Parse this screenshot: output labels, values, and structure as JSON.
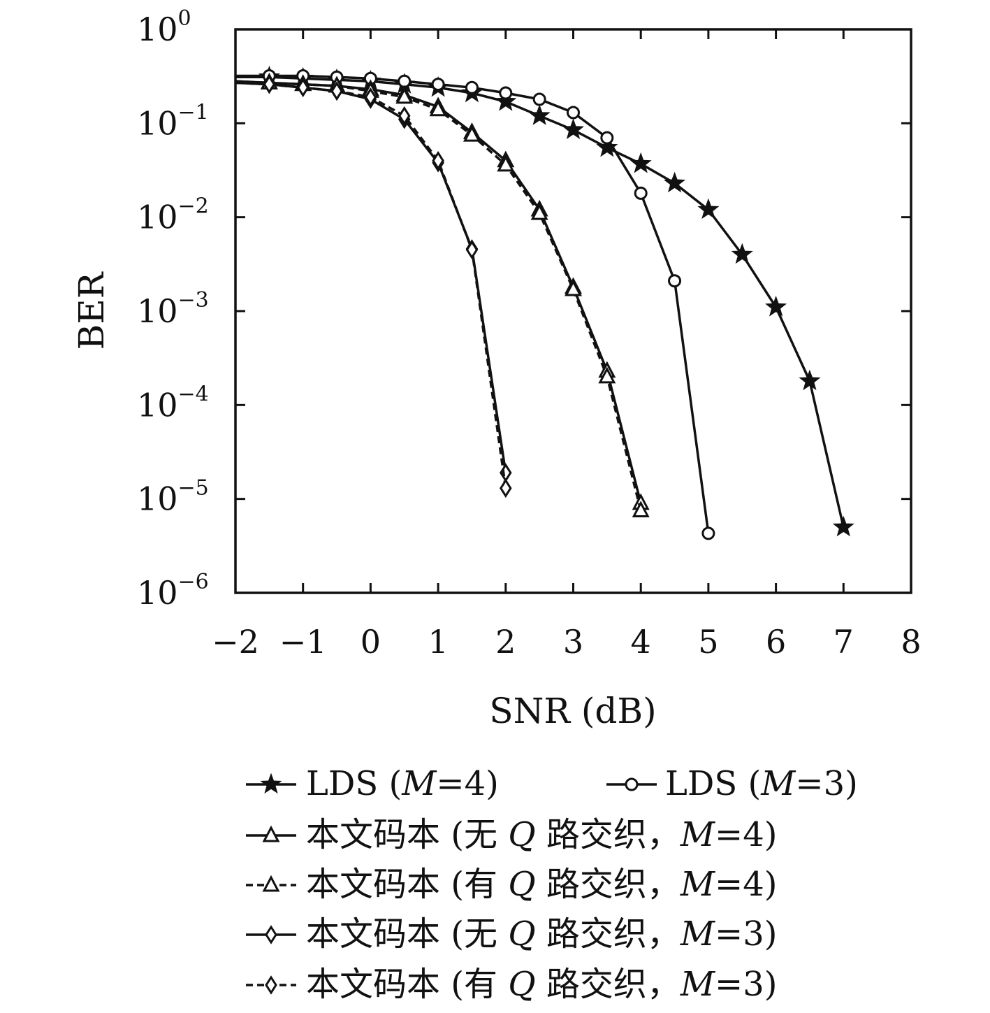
{
  "chart_data": {
    "type": "line",
    "xlabel": "SNR (dB)",
    "ylabel": "BER",
    "x_scale": "linear",
    "y_scale": "log",
    "xlim": [
      -2,
      8
    ],
    "ylim": [
      1e-06,
      1
    ],
    "x_ticks": [
      -2,
      -1,
      0,
      1,
      2,
      3,
      4,
      5,
      6,
      7,
      8
    ],
    "x_tick_labels": [
      "−2",
      "−1",
      "0",
      "1",
      "2",
      "3",
      "4",
      "5",
      "6",
      "7",
      "8"
    ],
    "y_ticks": [
      1,
      0.1,
      0.01,
      0.001,
      0.0001,
      1e-05,
      1e-06
    ],
    "y_tick_mantissa": "10",
    "y_tick_exponents": [
      "0",
      "−1",
      "−2",
      "−3",
      "−4",
      "−5",
      "−6"
    ],
    "grid": false,
    "legend_position": "bottom",
    "legend": {
      "row1": [
        "LDS (",
        "M",
        "=4)"
      ],
      "row1b": [
        "LDS (",
        "M",
        "=3)"
      ],
      "row2": [
        "本文码本 (无 ",
        "Q",
        " 路交织，",
        "M",
        "=4)"
      ],
      "row3": [
        "本文码本 (有 ",
        "Q",
        " 路交织，",
        "M",
        "=4)"
      ],
      "row4": [
        "本文码本 (无 ",
        "Q",
        " 路交织，",
        "M",
        "=3)"
      ],
      "row5": [
        "本文码本 (有 ",
        "Q",
        " 路交织，",
        "M",
        "=3)"
      ]
    },
    "series": [
      {
        "marker": "star",
        "dashed": false,
        "x": [
          -2,
          -1.5,
          -1,
          -0.5,
          0,
          0.5,
          1,
          1.5,
          2,
          2.5,
          3,
          3.5,
          4,
          4.5,
          5,
          5.5,
          6,
          6.5,
          7
        ],
        "y": [
          0.31,
          0.31,
          0.3,
          0.29,
          0.28,
          0.26,
          0.24,
          0.21,
          0.17,
          0.12,
          0.085,
          0.055,
          0.037,
          0.023,
          0.012,
          0.004,
          0.0011,
          0.00018,
          5e-06
        ]
      },
      {
        "marker": "circle",
        "dashed": false,
        "x": [
          -2,
          -1.5,
          -1,
          -0.5,
          0,
          0.5,
          1,
          1.5,
          2,
          2.5,
          3,
          3.5,
          4,
          4.5,
          5
        ],
        "y": [
          0.32,
          0.32,
          0.32,
          0.31,
          0.3,
          0.28,
          0.26,
          0.24,
          0.21,
          0.18,
          0.13,
          0.07,
          0.018,
          0.0021,
          4.3e-06
        ]
      },
      {
        "marker": "triangle",
        "dashed": false,
        "x": [
          -2,
          -1.5,
          -1,
          -0.5,
          0,
          0.5,
          1,
          1.5,
          2,
          2.5,
          3,
          3.5,
          4
        ],
        "y": [
          0.28,
          0.27,
          0.26,
          0.25,
          0.23,
          0.2,
          0.15,
          0.08,
          0.04,
          0.012,
          0.0018,
          0.00023,
          9e-06
        ]
      },
      {
        "marker": "triangle",
        "dashed": true,
        "x": [
          -2,
          -1.5,
          -1,
          -0.5,
          0,
          0.5,
          1,
          1.5,
          2,
          2.5,
          3,
          3.5,
          4
        ],
        "y": [
          0.28,
          0.27,
          0.26,
          0.25,
          0.22,
          0.19,
          0.14,
          0.075,
          0.036,
          0.011,
          0.0017,
          0.0002,
          7.5e-06
        ]
      },
      {
        "marker": "diamond",
        "dashed": false,
        "x": [
          -2,
          -1.5,
          -1,
          -0.5,
          0,
          0.5,
          1,
          1.5,
          2
        ],
        "y": [
          0.27,
          0.26,
          0.24,
          0.22,
          0.18,
          0.11,
          0.038,
          0.0046,
          1.9e-05
        ]
      },
      {
        "marker": "diamond",
        "dashed": true,
        "x": [
          -2,
          -1.5,
          -1,
          -0.5,
          0,
          0.5,
          1,
          1.5,
          2
        ],
        "y": [
          0.27,
          0.26,
          0.24,
          0.22,
          0.19,
          0.12,
          0.04,
          0.0045,
          1.3e-05
        ]
      }
    ]
  }
}
